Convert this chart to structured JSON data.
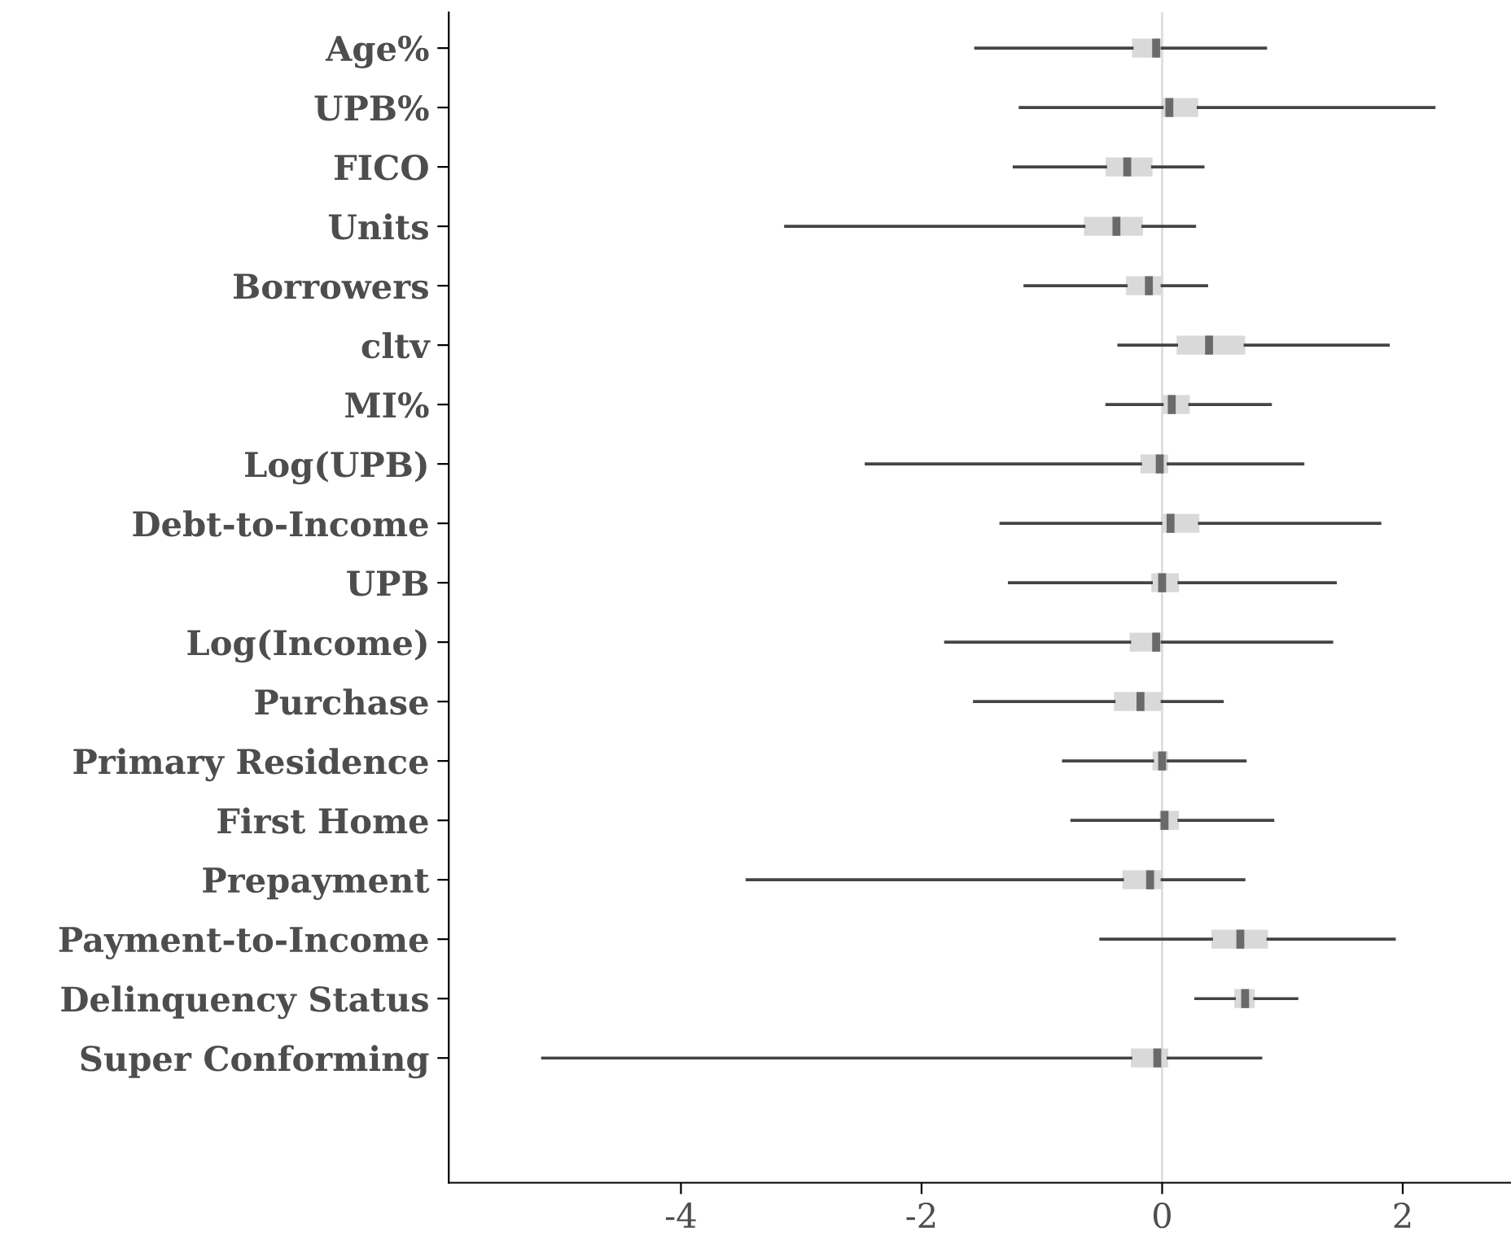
{
  "chart_data": {
    "type": "box",
    "orientation": "horizontal",
    "categories": [
      "Age%",
      "UPB%",
      "FICO",
      "Units",
      "Borrowers",
      "cltv",
      "MI%",
      "Log(UPB)",
      "Debt-to-Income",
      "UPB",
      "Log(Income)",
      "Purchase",
      "Primary Residence",
      "First Home",
      "Prepayment",
      "Payment-to-Income",
      "Delinquency Status",
      "Super Conforming"
    ],
    "series": [
      {
        "color": "#d9d9d9",
        "boxes": [
          {
            "low": -1.55,
            "q1": -0.25,
            "median": -0.05,
            "q3": 0.0,
            "high": 0.86
          },
          {
            "low": -1.18,
            "q1": 0.0,
            "median": 0.06,
            "q3": 0.3,
            "high": 2.26
          },
          {
            "low": -1.23,
            "q1": -0.47,
            "median": -0.29,
            "q3": -0.08,
            "high": 0.34
          },
          {
            "low": -3.13,
            "q1": -0.65,
            "median": -0.38,
            "q3": -0.16,
            "high": 0.27
          },
          {
            "low": -1.14,
            "q1": -0.3,
            "median": -0.11,
            "q3": 0.0,
            "high": 0.37
          },
          {
            "low": -0.36,
            "q1": 0.12,
            "median": 0.39,
            "q3": 0.69,
            "high": 1.88
          },
          {
            "low": -0.46,
            "q1": 0.0,
            "median": 0.08,
            "q3": 0.23,
            "high": 0.9
          },
          {
            "low": -2.46,
            "q1": -0.18,
            "median": -0.02,
            "q3": 0.05,
            "high": 1.17
          },
          {
            "low": -1.34,
            "q1": -0.01,
            "median": 0.07,
            "q3": 0.31,
            "high": 1.81
          },
          {
            "low": -1.27,
            "q1": -0.09,
            "median": 0.0,
            "q3": 0.14,
            "high": 1.44
          },
          {
            "low": -1.8,
            "q1": -0.27,
            "median": -0.05,
            "q3": 0.0,
            "high": 1.41
          },
          {
            "low": -1.56,
            "q1": -0.4,
            "median": -0.18,
            "q3": 0.0,
            "high": 0.5
          },
          {
            "low": -0.82,
            "q1": -0.08,
            "median": 0.0,
            "q3": 0.05,
            "high": 0.69
          },
          {
            "low": -0.75,
            "q1": -0.02,
            "median": 0.02,
            "q3": 0.14,
            "high": 0.92
          },
          {
            "low": -3.45,
            "q1": -0.33,
            "median": -0.1,
            "q3": 0.0,
            "high": 0.68
          },
          {
            "low": -0.51,
            "q1": 0.41,
            "median": 0.65,
            "q3": 0.88,
            "high": 1.93
          },
          {
            "low": 0.28,
            "q1": 0.6,
            "median": 0.69,
            "q3": 0.77,
            "high": 1.12
          },
          {
            "low": -5.15,
            "q1": -0.26,
            "median": -0.04,
            "q3": 0.05,
            "high": 0.82
          }
        ]
      }
    ],
    "xlim": [
      -5.93,
      2.9
    ],
    "xticks": [
      -4,
      -2,
      0,
      2
    ],
    "ref_lines": [
      {
        "axis": "x",
        "value": 0,
        "color": "#dddddd"
      }
    ],
    "grid": false
  }
}
